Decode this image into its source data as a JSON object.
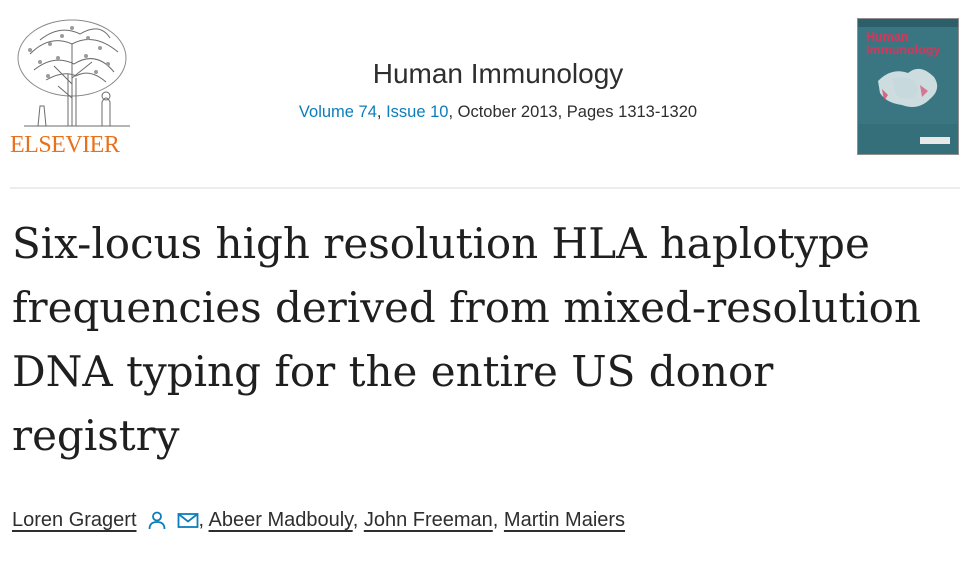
{
  "publisher": {
    "name": "ELSEVIER"
  },
  "journal": {
    "name": "Human Immunology",
    "volume": "Volume 74",
    "issue": "Issue 10",
    "date_pages": ", October 2013, Pages 1313-1320",
    "cover_title_line1": "Human",
    "cover_title_line2": "Immunology"
  },
  "article": {
    "title": "Six-locus high resolution HLA haplotype frequencies derived from mixed-resolution DNA typing for the entire US donor registry",
    "authors": [
      "Loren Gragert",
      "Abeer Madbouly",
      "John Freeman",
      "Martin Maiers"
    ],
    "separator": ",",
    "icons": [
      "person-icon",
      "envelope-icon"
    ]
  },
  "colors": {
    "link": "#0c7dbb",
    "publisher": "#e9711c",
    "text": "#1f1f1f",
    "cover": "#3f7f8a",
    "cover_title": "#d7355a"
  }
}
